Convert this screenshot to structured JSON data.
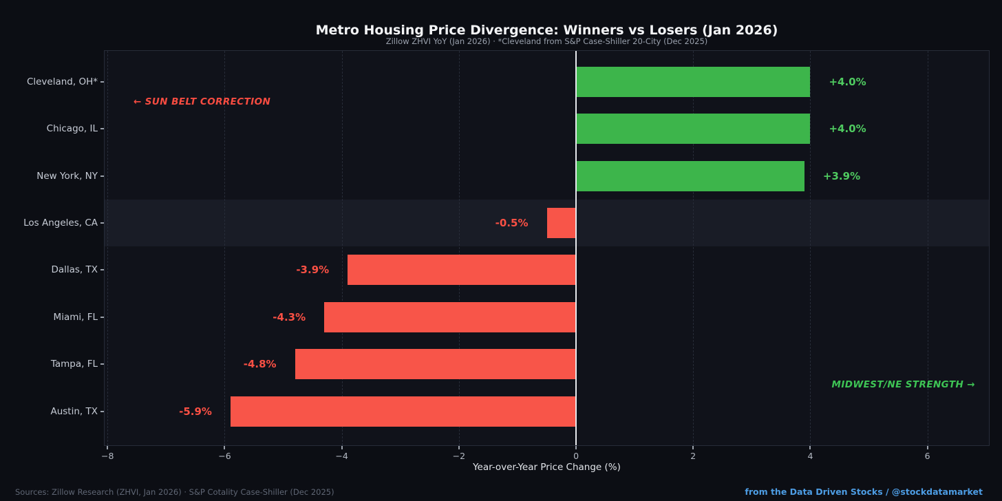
{
  "title": "Metro Housing Price Divergence: Winners vs Losers (Jan 2026)",
  "subtitle": "Zillow ZHVI YoY (Jan 2026) · *Cleveland from S&P Case-Shiller 20-City (Dec 2025)",
  "annotations": {
    "sun_belt": "← SUN BELT CORRECTION",
    "midwest": "MIDWEST/NE STRENGTH →"
  },
  "footer": {
    "sources": "Sources: Zillow Research (ZHVI, Jan 2026) · S&P Cotality Case-Shiller (Dec 2025)",
    "credit": "from the Data Driven Stocks / @stockdatamarket"
  },
  "colors": {
    "positive_bar": "#3db54b",
    "positive_label": "#4fca60",
    "negative_bar": "#f85549",
    "negative_label": "#fa5044",
    "annotation_red": "#f74c41",
    "annotation_green": "#3ec455",
    "credit_blue": "#4d9de4",
    "zero_line": "#e8eaee"
  },
  "chart_data": {
    "type": "bar",
    "orientation": "horizontal",
    "title": "Metro Housing Price Divergence: Winners vs Losers (Jan 2026)",
    "subtitle": "Zillow ZHVI YoY (Jan 2026) · *Cleveland from S&P Case-Shiller 20-City (Dec 2025)",
    "xlabel": "Year-over-Year Price Change (%)",
    "categories": [
      "Cleveland, OH*",
      "Chicago, IL",
      "New York, NY",
      "Los Angeles, CA",
      "Dallas, TX",
      "Miami, FL",
      "Tampa, FL",
      "Austin, TX"
    ],
    "values": [
      4.0,
      4.0,
      3.9,
      -0.5,
      -3.9,
      -4.3,
      -4.8,
      -5.9
    ],
    "bar_labels": [
      "+4.0%",
      "+4.0%",
      "+3.9%",
      "-0.5%",
      "-3.9%",
      "-4.3%",
      "-4.8%",
      "-5.9%"
    ],
    "highlighted_category": "Los Angeles, CA",
    "xlim": [
      -8.05,
      7.05
    ],
    "xticks": [
      {
        "value": -8,
        "label": "−8"
      },
      {
        "value": -6,
        "label": "−6"
      },
      {
        "value": -4,
        "label": "−4"
      },
      {
        "value": -2,
        "label": "−2"
      },
      {
        "value": 0,
        "label": "0"
      },
      {
        "value": 2,
        "label": "2"
      },
      {
        "value": 4,
        "label": "4"
      },
      {
        "value": 6,
        "label": "6"
      }
    ],
    "grid": "vertical-dashed",
    "legend": "none"
  }
}
